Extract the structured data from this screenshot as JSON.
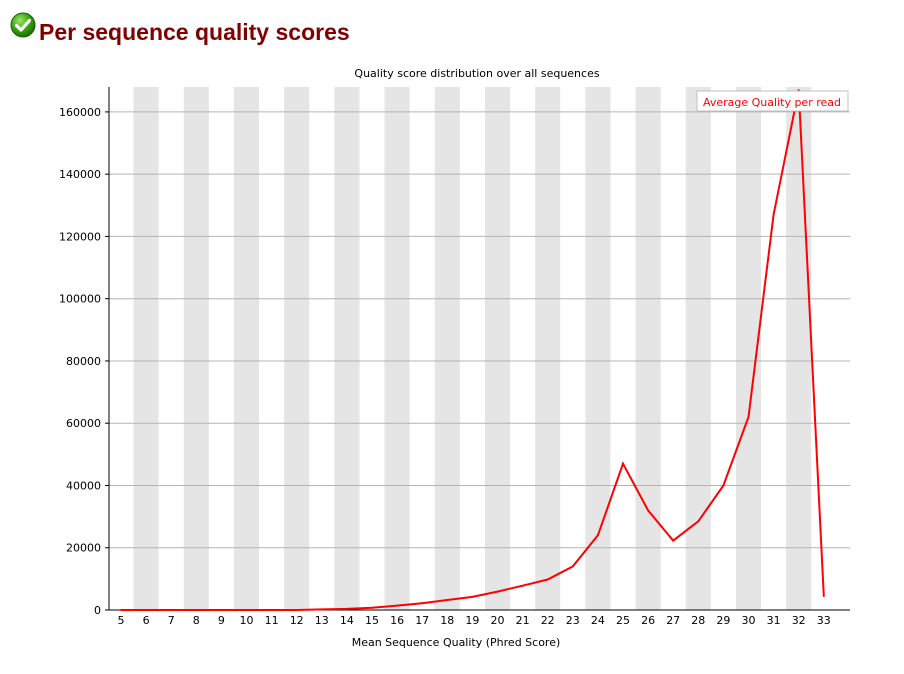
{
  "header": {
    "title": "Per sequence quality scores",
    "status_icon": "check-circle-icon",
    "status_color": "#2e9e0b",
    "title_color": "#800000"
  },
  "chart_data": {
    "type": "line",
    "title": "Quality score distribution over all sequences",
    "xlabel": "Mean Sequence Quality (Phred Score)",
    "ylabel": "",
    "x": [
      5,
      6,
      7,
      8,
      9,
      10,
      11,
      12,
      13,
      14,
      15,
      16,
      17,
      18,
      19,
      20,
      21,
      22,
      23,
      24,
      25,
      26,
      27,
      28,
      29,
      30,
      31,
      32,
      33
    ],
    "xlim": [
      5,
      33
    ],
    "ylim": [
      0,
      168000
    ],
    "yticks": [
      0,
      20000,
      40000,
      60000,
      80000,
      100000,
      120000,
      140000,
      160000
    ],
    "series": [
      {
        "name": "Average Quality per read",
        "color": "#ff0000",
        "values": [
          0,
          0,
          0,
          0,
          0,
          0,
          0,
          0,
          200,
          350,
          700,
          1400,
          2200,
          3200,
          4200,
          5900,
          7800,
          9800,
          14000,
          24000,
          47000,
          32000,
          22300,
          28500,
          40000,
          62000,
          127000,
          167000,
          4500
        ]
      }
    ],
    "grid": true,
    "band_color": "#e5e5e5",
    "legend_position": "top-right"
  }
}
